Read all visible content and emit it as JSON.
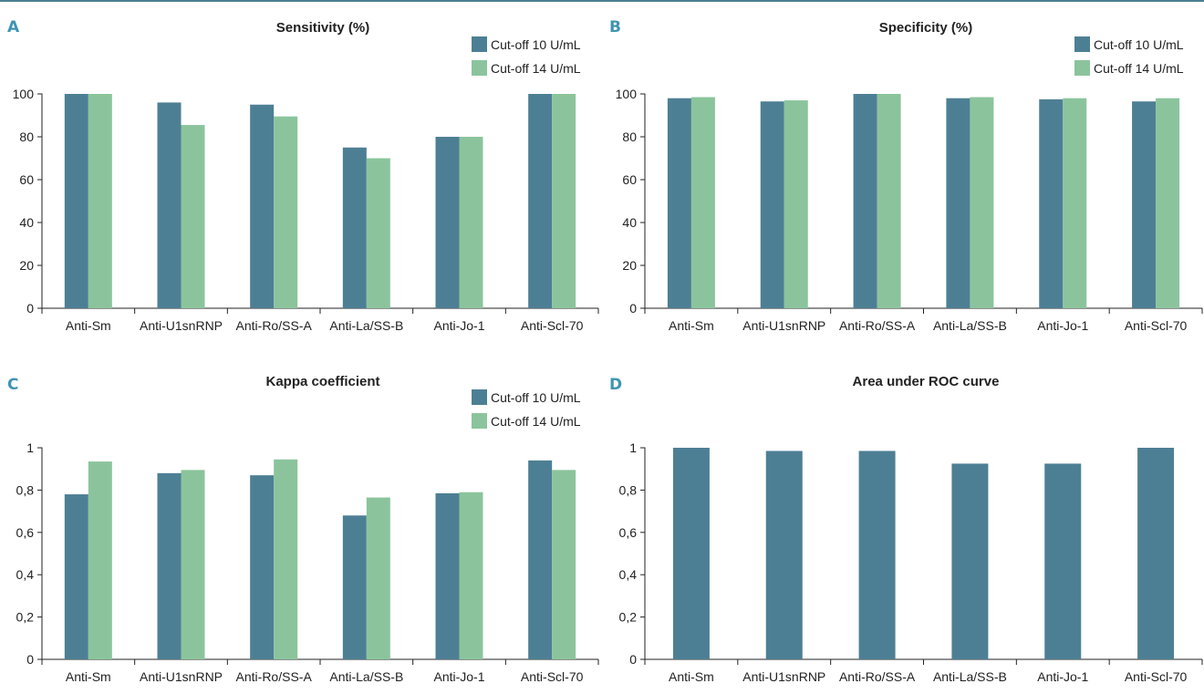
{
  "colors": {
    "series_1": "#4d7f94",
    "series_2": "#8bc49c",
    "panel_letter": "#3f94b3",
    "axis": "#222222",
    "top_rule": "#4a7f94"
  },
  "chart_data": [
    {
      "panel": "A",
      "type": "bar",
      "title": "Sensitivity (%)",
      "categories": [
        "Anti-Sm",
        "Anti-U1snRNP",
        "Anti-Ro/SS-A",
        "Anti-La/SS-B",
        "Anti-Jo-1",
        "Anti-Scl-70"
      ],
      "series": [
        {
          "name": "Cut-off 10 U/mL",
          "values": [
            100,
            96,
            95,
            75,
            80,
            100
          ]
        },
        {
          "name": "Cut-off 14 U/mL",
          "values": [
            100,
            85.5,
            89.5,
            70,
            80,
            100
          ]
        }
      ],
      "ylim": [
        0,
        100
      ],
      "yticks": [
        0,
        20,
        40,
        60,
        80,
        100
      ],
      "ytick_labels": [
        "0",
        "20",
        "40",
        "60",
        "80",
        "100"
      ],
      "legend": "top-right"
    },
    {
      "panel": "B",
      "type": "bar",
      "title": "Specificity (%)",
      "categories": [
        "Anti-Sm",
        "Anti-U1snRNP",
        "Anti-Ro/SS-A",
        "Anti-La/SS-B",
        "Anti-Jo-1",
        "Anti-Scl-70"
      ],
      "series": [
        {
          "name": "Cut-off 10 U/mL",
          "values": [
            98,
            96.5,
            100,
            98,
            97.5,
            96.5
          ]
        },
        {
          "name": "Cut-off 14 U/mL",
          "values": [
            98.5,
            97,
            100,
            98.5,
            98,
            98
          ]
        }
      ],
      "ylim": [
        0,
        100
      ],
      "yticks": [
        0,
        20,
        40,
        60,
        80,
        100
      ],
      "ytick_labels": [
        "0",
        "20",
        "40",
        "60",
        "80",
        "100"
      ],
      "legend": "top-right"
    },
    {
      "panel": "C",
      "type": "bar",
      "title": "Kappa coefficient",
      "categories": [
        "Anti-Sm",
        "Anti-U1snRNP",
        "Anti-Ro/SS-A",
        "Anti-La/SS-B",
        "Anti-Jo-1",
        "Anti-Scl-70"
      ],
      "series": [
        {
          "name": "Cut-off 10 U/mL",
          "values": [
            0.78,
            0.88,
            0.87,
            0.68,
            0.785,
            0.94
          ]
        },
        {
          "name": "Cut-off 14 U/mL",
          "values": [
            0.935,
            0.895,
            0.945,
            0.765,
            0.79,
            0.895
          ]
        }
      ],
      "ylim": [
        0,
        1
      ],
      "yticks": [
        0,
        0.2,
        0.4,
        0.6,
        0.8,
        1
      ],
      "ytick_labels": [
        "0",
        "0,2",
        "0,4",
        "0,6",
        "0,8",
        "1"
      ],
      "legend": "top-right"
    },
    {
      "panel": "D",
      "type": "bar",
      "title": "Area under ROC curve",
      "categories": [
        "Anti-Sm",
        "Anti-U1snRNP",
        "Anti-Ro/SS-A",
        "Anti-La/SS-B",
        "Anti-Jo-1",
        "Anti-Scl-70"
      ],
      "series": [
        {
          "values": [
            1.0,
            0.985,
            0.985,
            0.925,
            0.925,
            1.0
          ]
        }
      ],
      "ylim": [
        0,
        1
      ],
      "yticks": [
        0,
        0.2,
        0.4,
        0.6,
        0.8,
        1
      ],
      "ytick_labels": [
        "0",
        "0,2",
        "0,4",
        "0,6",
        "0,8",
        "1"
      ],
      "legend": "none"
    }
  ]
}
